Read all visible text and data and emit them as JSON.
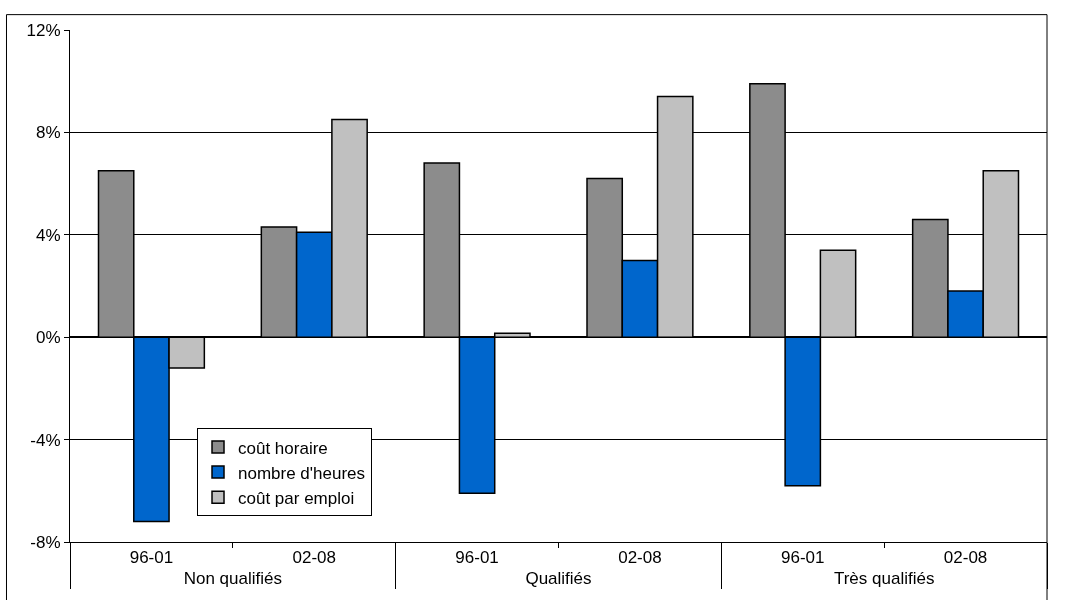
{
  "chart_data": {
    "type": "bar",
    "categories": [
      "96-01",
      "02-08",
      "96-01",
      "02-08",
      "96-01",
      "02-08"
    ],
    "annotations": [
      "Non qualifiés",
      "Qualifiés",
      "Très qualifiés"
    ],
    "series": [
      {
        "name": "coût horaire",
        "color": "#8c8c8c",
        "values": [
          6.5,
          4.3,
          6.8,
          6.2,
          9.9,
          4.6
        ]
      },
      {
        "name": "nombre d'heures",
        "color": "#0066cc",
        "values": [
          -7.2,
          4.1,
          -6.1,
          3.0,
          -5.8,
          1.8
        ]
      },
      {
        "name": "coût par emploi",
        "color": "#c0c0c0",
        "values": [
          -1.2,
          8.5,
          0.15,
          9.4,
          3.4,
          6.5
        ]
      }
    ],
    "ylim": [
      -8,
      12
    ],
    "yticks": [
      {
        "value": -8,
        "label": "-8%"
      },
      {
        "value": -4,
        "label": "-4%"
      },
      {
        "value": 0,
        "label": "0%"
      },
      {
        "value": 4,
        "label": "4%"
      },
      {
        "value": 8,
        "label": "8%"
      },
      {
        "value": 12,
        "label": "12%"
      }
    ],
    "grid": "y",
    "legend": "bottom left"
  }
}
